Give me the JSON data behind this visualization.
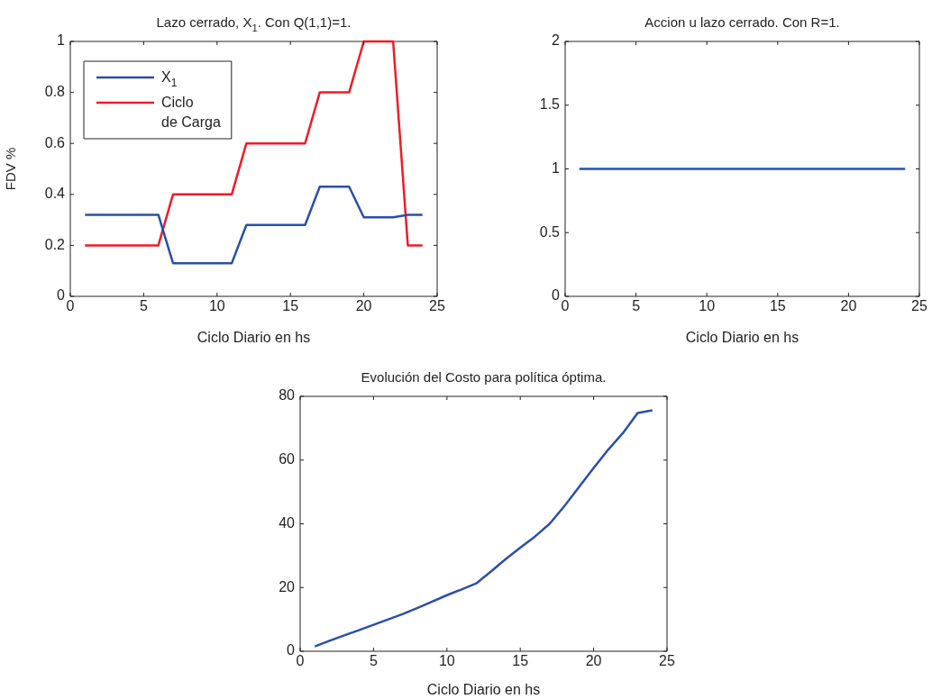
{
  "chart_data": [
    {
      "type": "line",
      "title": "Lazo cerrado, X$_{1}$. Con Q(1,1)=1.",
      "xlabel": "Ciclo Diario en hs",
      "ylabel": "FDV %",
      "x": [
        1,
        2,
        3,
        4,
        5,
        6,
        7,
        8,
        9,
        10,
        11,
        12,
        13,
        14,
        15,
        16,
        17,
        18,
        19,
        20,
        21,
        22,
        23,
        24
      ],
      "series": [
        {
          "name": "X$_{1}$",
          "color": "#2b4fa8",
          "values": [
            0.32,
            0.32,
            0.32,
            0.32,
            0.32,
            0.32,
            0.13,
            0.13,
            0.13,
            0.13,
            0.13,
            0.28,
            0.28,
            0.28,
            0.28,
            0.28,
            0.43,
            0.43,
            0.43,
            0.31,
            0.31,
            0.31,
            0.32,
            0.32
          ]
        },
        {
          "name": "Ciclo de Carga",
          "color": "#ee1c25",
          "values": [
            0.2,
            0.2,
            0.2,
            0.2,
            0.2,
            0.2,
            0.4,
            0.4,
            0.4,
            0.4,
            0.4,
            0.6,
            0.6,
            0.6,
            0.6,
            0.6,
            0.8,
            0.8,
            0.8,
            1,
            1,
            1,
            0.2,
            0.2
          ]
        }
      ],
      "xlim": [
        0,
        25
      ],
      "xticks": [
        0,
        5,
        10,
        15,
        20,
        25
      ],
      "ylim": [
        0,
        1
      ],
      "yticks": [
        0,
        0.2,
        0.4,
        0.6,
        0.8,
        1
      ],
      "legend": "top left",
      "grid": false
    },
    {
      "type": "line",
      "title": "Accion u lazo cerrado. Con R=1.",
      "xlabel": "Ciclo Diario en hs",
      "x": [
        1,
        2,
        3,
        4,
        5,
        6,
        7,
        8,
        9,
        10,
        11,
        12,
        13,
        14,
        15,
        16,
        17,
        18,
        19,
        20,
        21,
        22,
        23,
        24
      ],
      "series": [
        {
          "color": "#2b4fa8",
          "values": [
            1,
            1,
            1,
            1,
            1,
            1,
            1,
            1,
            1,
            1,
            1,
            1,
            1,
            1,
            1,
            1,
            1,
            1,
            1,
            1,
            1,
            1,
            1,
            1
          ]
        }
      ],
      "xlim": [
        0,
        25
      ],
      "xticks": [
        0,
        5,
        10,
        15,
        20,
        25
      ],
      "ylim": [
        0,
        2
      ],
      "yticks": [
        0,
        0.5,
        1,
        1.5,
        2
      ],
      "grid": false
    },
    {
      "type": "line",
      "title": "Evolución del Costo para política óptima.",
      "xlabel": "Ciclo Diario en hs",
      "x": [
        1,
        2,
        3,
        4,
        5,
        6,
        7,
        8,
        9,
        10,
        11,
        12,
        13,
        14,
        15,
        16,
        17,
        18,
        19,
        20,
        21,
        22,
        23,
        24
      ],
      "series": [
        {
          "color": "#2b4fa8",
          "values": [
            1.5,
            3.3,
            5,
            6.6,
            8.3,
            10,
            11.7,
            13.6,
            15.6,
            17.6,
            19.4,
            21.3,
            25,
            28.9,
            32.5,
            36,
            40,
            45.5,
            51.5,
            57.5,
            63.3,
            68.5,
            74.8,
            75.6
          ]
        }
      ],
      "xlim": [
        0,
        25
      ],
      "xticks": [
        0,
        5,
        10,
        15,
        20,
        25
      ],
      "ylim": [
        0,
        80
      ],
      "yticks": [
        0,
        20,
        40,
        60,
        80
      ],
      "grid": false
    }
  ]
}
